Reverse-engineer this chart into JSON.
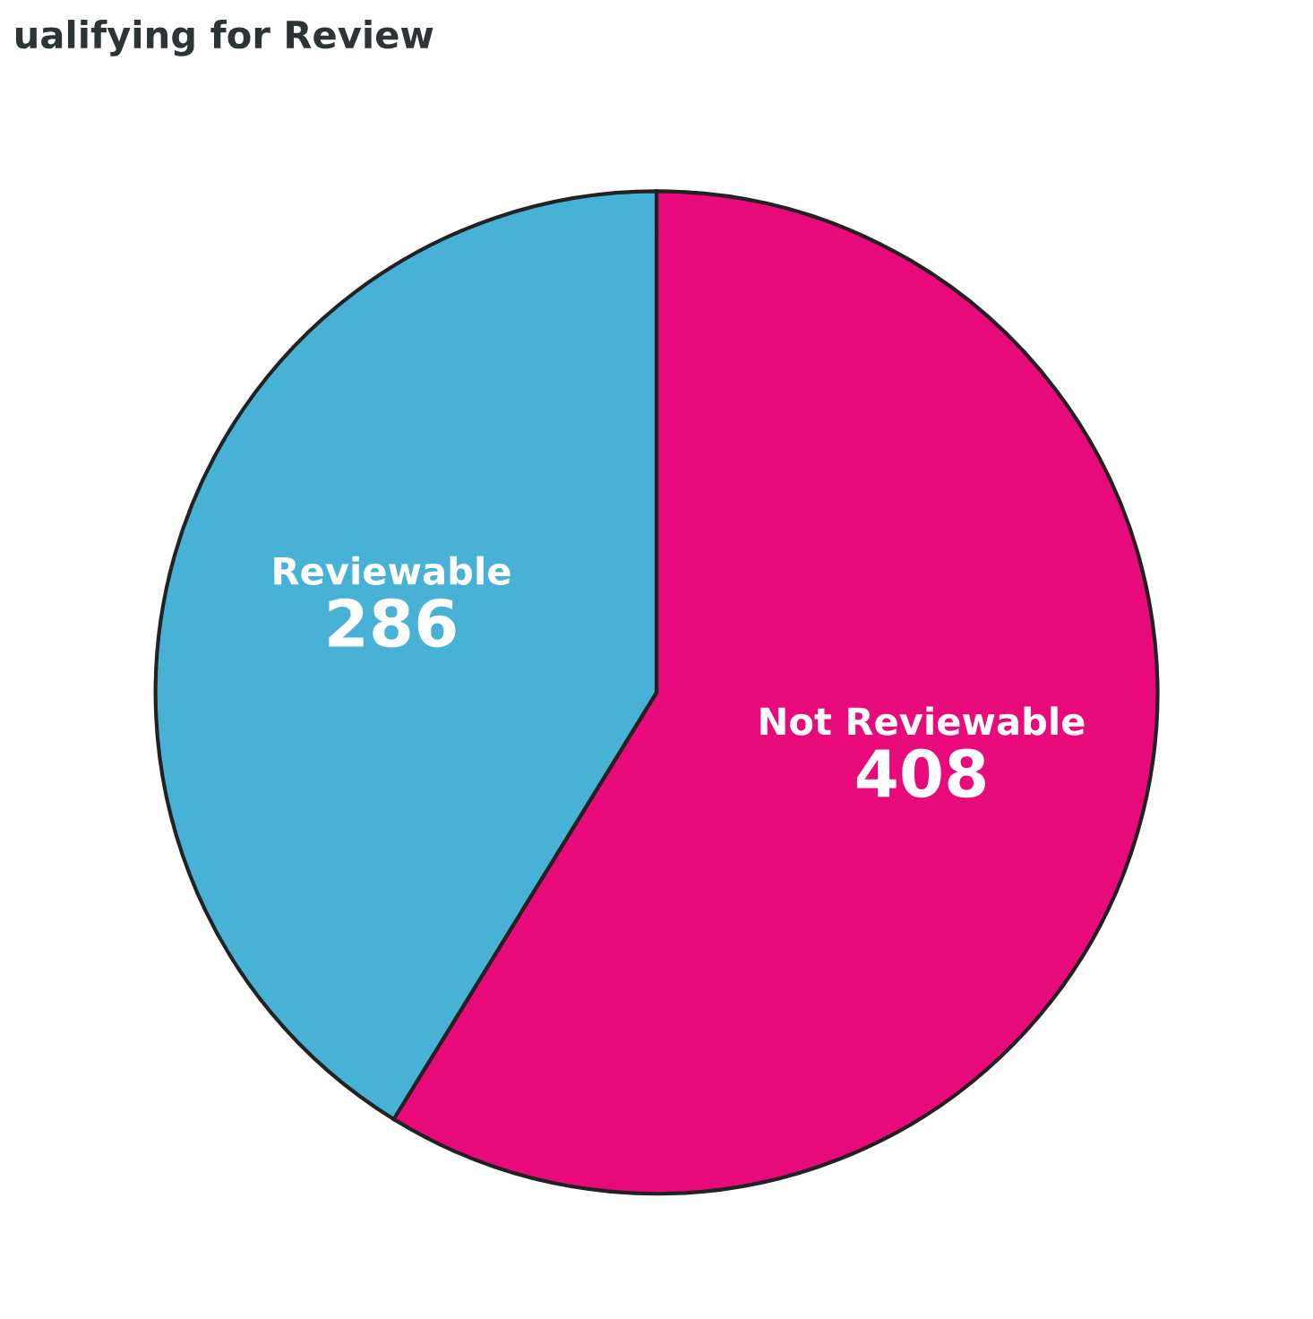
{
  "chart_data": {
    "type": "pie",
    "title": "ualifying for Review",
    "categories": [
      "Not Reviewable",
      "Reviewable"
    ],
    "values": [
      408,
      286
    ],
    "colors": [
      "#e8097a",
      "#47b2d6"
    ],
    "data_labels": true
  }
}
